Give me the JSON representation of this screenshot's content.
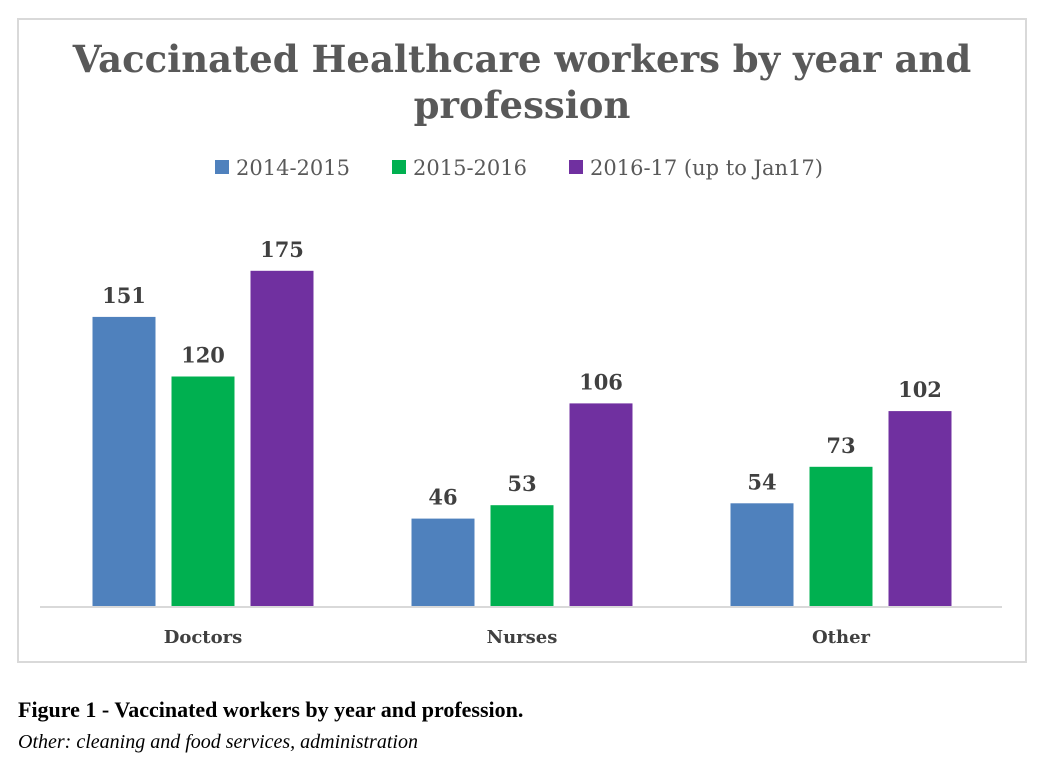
{
  "chart_data": {
    "type": "bar",
    "title_lines": [
      "Vaccinated Healthcare workers by year and",
      "profession"
    ],
    "categories": [
      "Doctors",
      "Nurses",
      "Other"
    ],
    "series": [
      {
        "name": "2014-2015",
        "color": "#4f81bd",
        "values": [
          151,
          46,
          54
        ]
      },
      {
        "name": "2015-2016",
        "color": "#00b050",
        "values": [
          120,
          53,
          73
        ]
      },
      {
        "name": "2016-17 (up to  Jan17)",
        "color": "#7030a0",
        "values": [
          175,
          106,
          102
        ]
      }
    ],
    "ylim": [
      0,
      190
    ],
    "grid": false,
    "legend_position": "top",
    "xlabel": "",
    "ylabel": ""
  },
  "caption": "Figure 1 - Vaccinated workers  by year and  profession.",
  "note": "Other: cleaning and food services, administration"
}
